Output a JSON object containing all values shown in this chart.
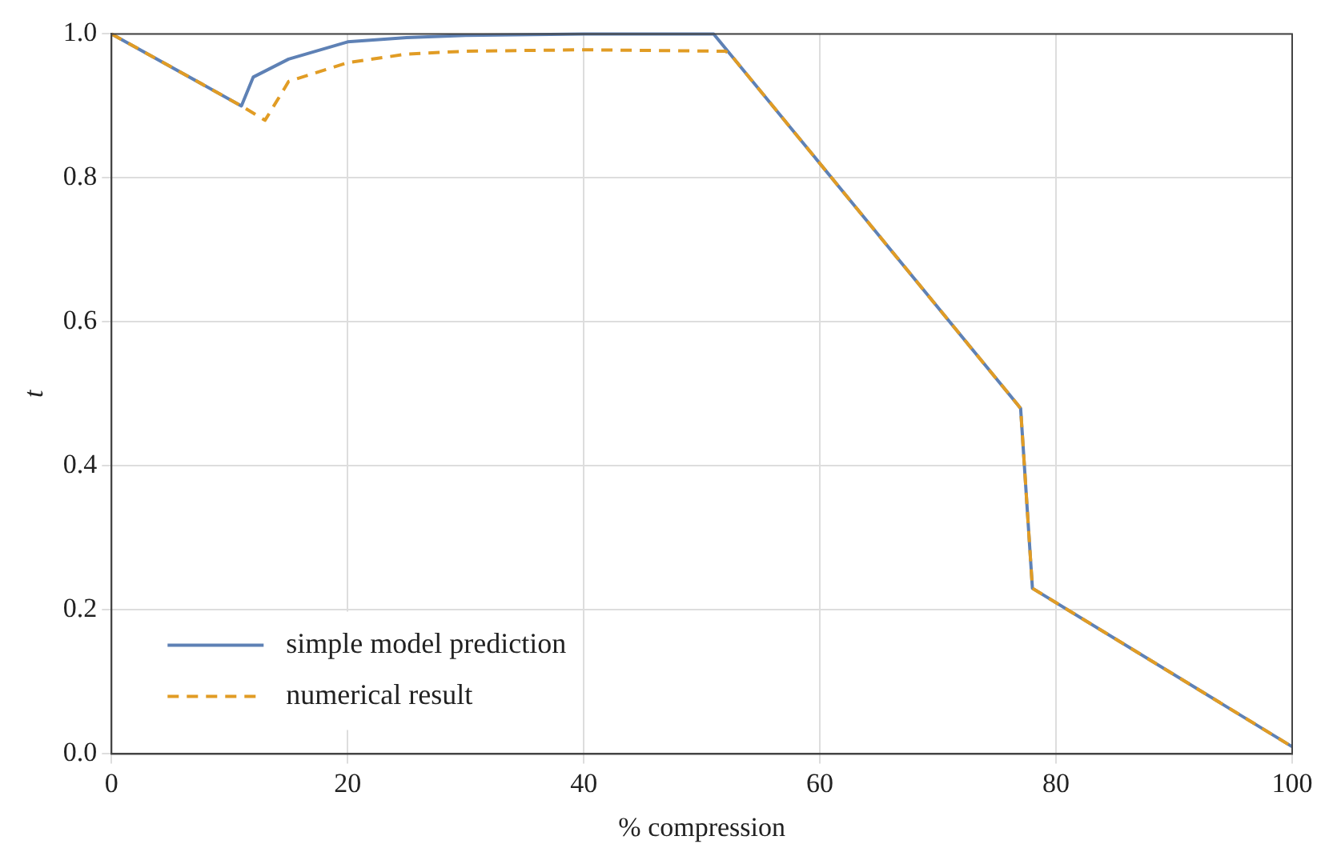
{
  "chart_data": {
    "type": "line",
    "xlabel": "% compression",
    "ylabel": "t",
    "xlim": [
      0,
      100
    ],
    "ylim": [
      0,
      1
    ],
    "xticks": [
      0,
      20,
      40,
      60,
      80,
      100
    ],
    "yticks": [
      {
        "value": 0,
        "label": "0.0"
      },
      {
        "value": 0.2,
        "label": "0.2"
      },
      {
        "value": 0.4,
        "label": "0.4"
      },
      {
        "value": 0.6,
        "label": "0.6"
      },
      {
        "value": 0.8,
        "label": "0.8"
      },
      {
        "value": 1,
        "label": "1.0"
      }
    ],
    "grid": true,
    "legend": "bottom left",
    "marker": "none",
    "series": [
      {
        "name": "simple model prediction",
        "color": "#5e81b5",
        "line_style": "solid",
        "x": [
          0,
          11,
          12,
          15,
          20,
          25,
          30,
          40,
          51,
          77,
          78,
          100
        ],
        "values": [
          1,
          0.9,
          0.94,
          0.965,
          0.989,
          0.995,
          0.998,
          1,
          1,
          0.48,
          0.23,
          0.01
        ]
      },
      {
        "name": "numerical result",
        "color": "#e19c24",
        "line_style": "dashed",
        "x": [
          0,
          11,
          13,
          14.6,
          15,
          20,
          25,
          30,
          40,
          52,
          52.5,
          77,
          78,
          100
        ],
        "values": [
          1,
          0.9,
          0.88,
          0.923,
          0.934,
          0.96,
          0.972,
          0.976,
          0.978,
          0.976,
          0.97,
          0.48,
          0.23,
          0.01
        ]
      }
    ]
  }
}
